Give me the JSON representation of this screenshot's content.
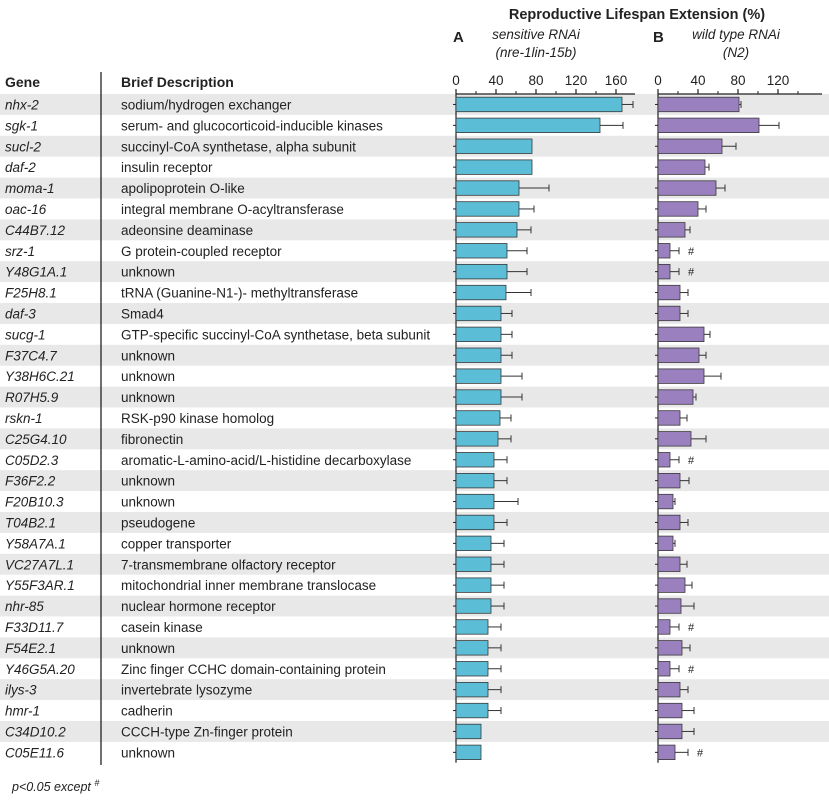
{
  "title": "Reproductive  Lifespan Extension (%)",
  "panels": [
    {
      "letter": "A",
      "subtitle_line1": "sensitive RNAi",
      "subtitle_line2": "(nre-1lin-15b)",
      "color": "#5bbdd6",
      "ticks": [
        "0",
        "40",
        "80",
        "120",
        "160"
      ]
    },
    {
      "letter": "B",
      "subtitle_line1": "wild type RNAi",
      "subtitle_line2": "(N2)",
      "color": "#9b80c0",
      "ticks": [
        "0",
        "40",
        "80",
        "120"
      ]
    }
  ],
  "headers": {
    "gene": "Gene",
    "description": "Brief Description"
  },
  "footnote": "p<0.05 except #",
  "significance_marker": "#",
  "rows": [
    {
      "gene": "nhx-2",
      "description": "sodium/hydrogen exchanger"
    },
    {
      "gene": "sgk-1",
      "description": "serum- and glucocorticoid-inducible kinases"
    },
    {
      "gene": "sucl-2",
      "description": "succinyl-CoA synthetase, alpha subunit"
    },
    {
      "gene": "daf-2",
      "description": "insulin receptor"
    },
    {
      "gene": "moma-1",
      "description": "apolipoprotein O-like"
    },
    {
      "gene": "oac-16",
      "description": "integral membrane O-acyltransferase"
    },
    {
      "gene": "C44B7.12",
      "description": "adeonsine deaminase"
    },
    {
      "gene": "srz-1",
      "description": "G protein-coupled receptor"
    },
    {
      "gene": "Y48G1A.1",
      "description": "unknown"
    },
    {
      "gene": "F25H8.1",
      "description": "tRNA (Guanine-N1-)- methyltransferase"
    },
    {
      "gene": "daf-3",
      "description": "Smad4"
    },
    {
      "gene": "sucg-1",
      "description": "GTP-specific succinyl-CoA synthetase, beta subunit"
    },
    {
      "gene": "F37C4.7",
      "description": "unknown"
    },
    {
      "gene": "Y38H6C.21",
      "description": "unknown"
    },
    {
      "gene": "R07H5.9",
      "description": "unknown"
    },
    {
      "gene": "rskn-1",
      "description": "RSK-p90 kinase homolog"
    },
    {
      "gene": "C25G4.10",
      "description": "fibronectin"
    },
    {
      "gene": "C05D2.3",
      "description": "aromatic-L-amino-acid/L-histidine decarboxylase"
    },
    {
      "gene": "F36F2.2",
      "description": "unknown"
    },
    {
      "gene": "F20B10.3",
      "description": "unknown"
    },
    {
      "gene": "T04B2.1",
      "description": "pseudogene"
    },
    {
      "gene": "Y58A7A.1",
      "description": "copper transporter"
    },
    {
      "gene": "VC27A7L.1",
      "description": "7-transmembrane olfactory receptor"
    },
    {
      "gene": "Y55F3AR.1",
      "description": "mitochondrial inner membrane translocase"
    },
    {
      "gene": "nhr-85",
      "description": "nuclear hormone receptor"
    },
    {
      "gene": "F33D11.7",
      "description": "casein kinase"
    },
    {
      "gene": "F54E2.1",
      "description": "unknown"
    },
    {
      "gene": "Y46G5A.20",
      "description": "Zinc finger CCHC domain-containing protein"
    },
    {
      "gene": "ilys-3",
      "description": "invertebrate lysozyme"
    },
    {
      "gene": "hmr-1",
      "description": "cadherin"
    },
    {
      "gene": "C34D10.2",
      "description": "CCCH-type Zn-finger protein"
    },
    {
      "gene": "C05E11.6",
      "description": "unknown"
    }
  ],
  "chart_data": [
    {
      "type": "bar",
      "orientation": "horizontal",
      "title": "Reproductive  Lifespan Extension (%)",
      "subtitle": "sensitive RNAi (nre-1lin-15b)",
      "panel": "A",
      "xlim": [
        0,
        180
      ],
      "categories": [
        "nhx-2",
        "sgk-1",
        "sucl-2",
        "daf-2",
        "moma-1",
        "oac-16",
        "C44B7.12",
        "srz-1",
        "Y48G1A.1",
        "F25H8.1",
        "daf-3",
        "sucg-1",
        "F37C4.7",
        "Y38H6C.21",
        "R07H5.9",
        "rskn-1",
        "C25G4.10",
        "C05D2.3",
        "F36F2.2",
        "F20B10.3",
        "T04B2.1",
        "Y58A7A.1",
        "VC27A7L.1",
        "Y55F3AR.1",
        "nhr-85",
        "F33D11.7",
        "F54E2.1",
        "Y46G5A.20",
        "ilys-3",
        "hmr-1",
        "C34D10.2",
        "C05E11.6"
      ],
      "values": [
        166,
        144,
        76,
        76,
        63,
        63,
        61,
        51,
        51,
        50,
        45,
        45,
        45,
        45,
        45,
        44,
        42,
        38,
        38,
        38,
        38,
        35,
        35,
        35,
        35,
        32,
        32,
        32,
        32,
        32,
        25,
        25
      ],
      "errors": [
        11,
        23,
        0,
        0,
        30,
        15,
        14,
        20,
        20,
        25,
        11,
        11,
        11,
        21,
        21,
        11,
        13,
        13,
        13,
        24,
        13,
        13,
        13,
        13,
        13,
        13,
        13,
        13,
        13,
        13,
        0,
        0
      ]
    },
    {
      "type": "bar",
      "orientation": "horizontal",
      "title": "Reproductive  Lifespan Extension (%)",
      "subtitle": "wild type RNAi (N2)",
      "panel": "B",
      "xlim": [
        0,
        135
      ],
      "categories": [
        "nhx-2",
        "sgk-1",
        "sucl-2",
        "daf-2",
        "moma-1",
        "oac-16",
        "C44B7.12",
        "srz-1",
        "Y48G1A.1",
        "F25H8.1",
        "daf-3",
        "sucg-1",
        "F37C4.7",
        "Y38H6C.21",
        "R07H5.9",
        "rskn-1",
        "C25G4.10",
        "C05D2.3",
        "F36F2.2",
        "F20B10.3",
        "T04B2.1",
        "Y58A7A.1",
        "VC27A7L.1",
        "Y55F3AR.1",
        "nhr-85",
        "F33D11.7",
        "F54E2.1",
        "Y46G5A.20",
        "ilys-3",
        "hmr-1",
        "C34D10.2",
        "C05E11.6"
      ],
      "values": [
        81,
        101,
        64,
        47,
        58,
        40,
        27,
        12,
        12,
        22,
        22,
        46,
        41,
        46,
        35,
        22,
        33,
        12,
        22,
        15,
        22,
        15,
        22,
        27,
        23,
        12,
        24,
        12,
        22,
        24,
        24,
        17
      ],
      "errors": [
        2,
        20,
        14,
        4,
        9,
        8,
        5,
        9,
        9,
        8,
        8,
        6,
        7,
        17,
        3,
        7,
        15,
        9,
        9,
        2,
        8,
        2,
        7,
        7,
        13,
        9,
        8,
        9,
        8,
        12,
        12,
        13
      ],
      "not_significant": [
        "srz-1",
        "Y48G1A.1",
        "C05D2.3",
        "F33D11.7",
        "Y46G5A.20",
        "C05E11.6"
      ]
    }
  ]
}
